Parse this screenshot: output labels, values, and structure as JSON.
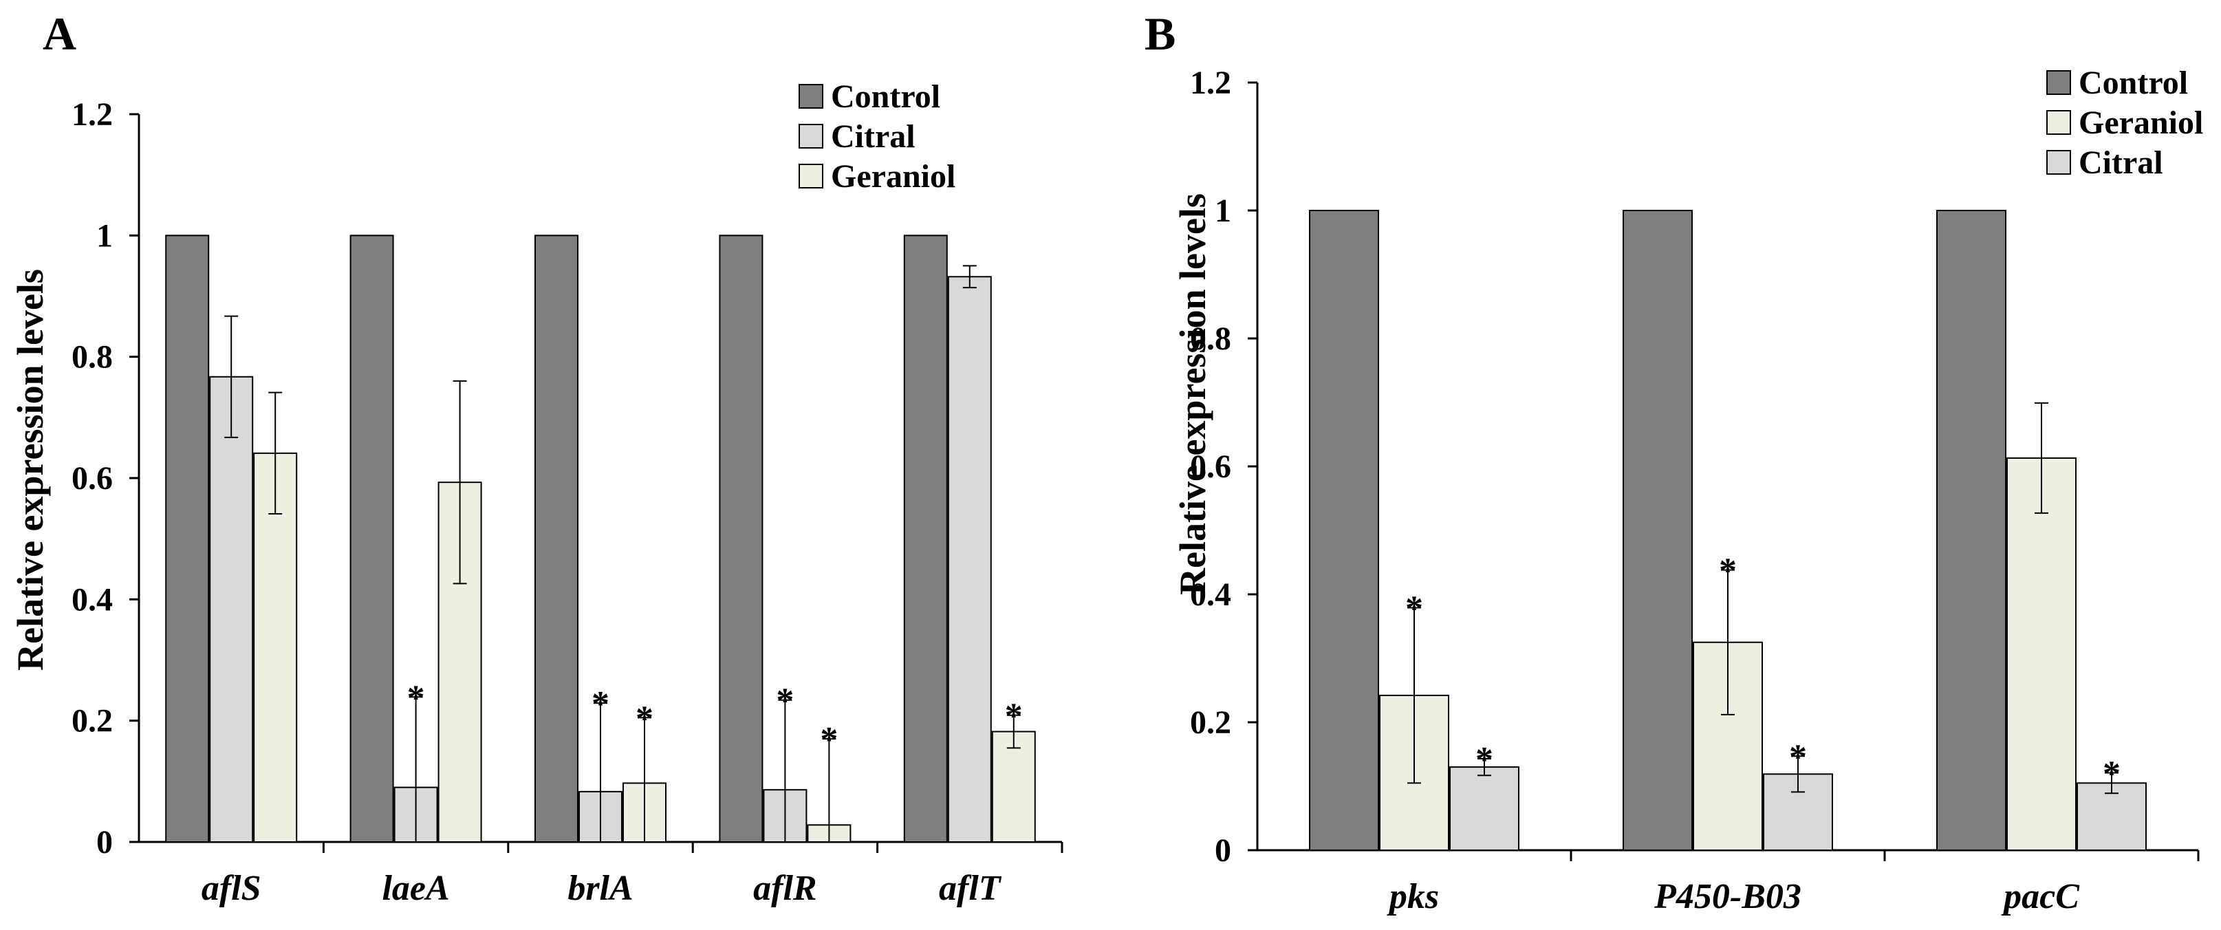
{
  "figure": {
    "colors": {
      "Control": "#7f7f7f",
      "Citral": "#d9d9d9",
      "Geraniol": "#efefe1",
      "stroke": "#000000"
    },
    "panels": [
      {
        "letter": "A"
      },
      {
        "letter": "B"
      }
    ]
  },
  "chart_data": [
    {
      "type": "bar",
      "panel": "A",
      "title": "",
      "xlabel": "",
      "ylabel": "Relative expression levels",
      "ylim": [
        0,
        1.2
      ],
      "yticks": [
        "0",
        "0.2",
        "0.4",
        "0.6",
        "0.8",
        "1",
        "1.2"
      ],
      "grid": false,
      "legend_position": "top-right",
      "categories": [
        "aflS",
        "laeA",
        "brlA",
        "aflR",
        "aflT"
      ],
      "series": [
        {
          "name": "Control",
          "values": [
            1,
            1,
            1,
            1,
            1
          ],
          "errors": [
            0,
            0,
            0,
            0,
            0
          ],
          "significant": [
            false,
            false,
            false,
            false,
            false
          ]
        },
        {
          "name": "Citral",
          "values": [
            0.767,
            0.09,
            0.083,
            0.086,
            0.932
          ],
          "errors": [
            0.1,
            0.149,
            0.146,
            0.148,
            0.018
          ],
          "significant": [
            false,
            true,
            true,
            true,
            false
          ]
        },
        {
          "name": "Geraniol",
          "values": [
            0.641,
            0.593,
            0.097,
            0.028,
            0.182
          ],
          "errors": [
            0.1,
            0.167,
            0.108,
            0.142,
            0.027
          ],
          "significant": [
            false,
            false,
            true,
            true,
            true
          ]
        }
      ]
    },
    {
      "type": "bar",
      "panel": "B",
      "title": "",
      "xlabel": "",
      "ylabel": "Relative expression levels",
      "ylim": [
        0,
        1.2
      ],
      "yticks": [
        "0",
        "0.2",
        "0.4",
        "0.6",
        "0.8",
        "1",
        "1.2"
      ],
      "grid": false,
      "legend_position": "top-right",
      "categories": [
        "pks",
        "P450-B03",
        "pacC"
      ],
      "series": [
        {
          "name": "Control",
          "values": [
            1,
            1,
            1
          ],
          "errors": [
            0,
            0,
            0
          ],
          "significant": [
            false,
            false,
            false
          ]
        },
        {
          "name": "Geraniol",
          "values": [
            0.242,
            0.325,
            0.613
          ],
          "errors": [
            0.137,
            0.113,
            0.086
          ],
          "significant": [
            true,
            true,
            false
          ]
        },
        {
          "name": "Citral",
          "values": [
            0.13,
            0.119,
            0.105
          ],
          "errors": [
            0.013,
            0.028,
            0.016
          ],
          "significant": [
            true,
            true,
            true
          ]
        }
      ]
    }
  ]
}
